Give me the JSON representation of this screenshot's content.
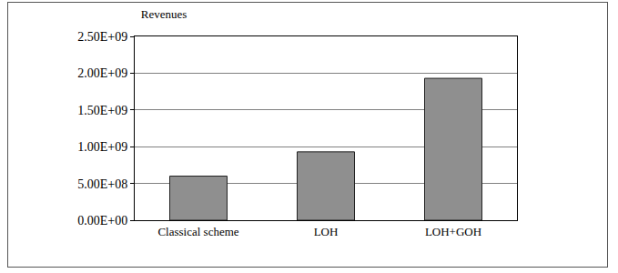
{
  "chart_data": {
    "type": "bar",
    "title": "Revenues",
    "categories": [
      "Classical scheme",
      "LOH",
      "LOH+GOH"
    ],
    "values": [
      600000000,
      930000000,
      1930000000
    ],
    "color": "#8f8f8f",
    "ylim": [
      0,
      2500000000
    ],
    "yticks": [
      {
        "value": 0,
        "label": "0.00E+00"
      },
      {
        "value": 500000000,
        "label": "5.00E+08"
      },
      {
        "value": 1000000000,
        "label": "1.00E+09"
      },
      {
        "value": 1500000000,
        "label": "1.50E+09"
      },
      {
        "value": 2000000000,
        "label": "2.00E+09"
      },
      {
        "value": 2500000000,
        "label": "2.50E+09"
      }
    ],
    "grid": true
  }
}
